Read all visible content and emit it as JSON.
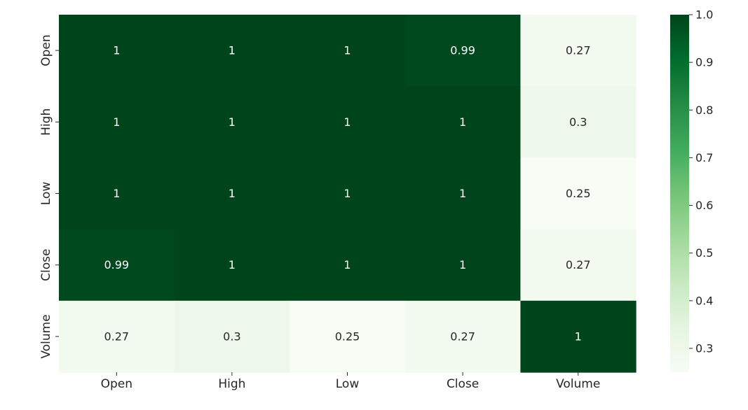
{
  "chart_data": {
    "type": "heatmap",
    "title": "",
    "xlabel": "",
    "ylabel": "",
    "x_labels": [
      "Open",
      "High",
      "Low",
      "Close",
      "Volume"
    ],
    "y_labels": [
      "Open",
      "High",
      "Low",
      "Close",
      "Volume"
    ],
    "values": [
      [
        1.0,
        1.0,
        1.0,
        0.99,
        0.27
      ],
      [
        1.0,
        1.0,
        1.0,
        1.0,
        0.3
      ],
      [
        1.0,
        1.0,
        1.0,
        1.0,
        0.25
      ],
      [
        0.99,
        1.0,
        1.0,
        1.0,
        0.27
      ],
      [
        0.27,
        0.3,
        0.25,
        0.27,
        1.0
      ]
    ],
    "annotations": [
      [
        "1",
        "1",
        "1",
        "0.99",
        "0.27"
      ],
      [
        "1",
        "1",
        "1",
        "1",
        "0.3"
      ],
      [
        "1",
        "1",
        "1",
        "1",
        "0.25"
      ],
      [
        "0.99",
        "1",
        "1",
        "1",
        "0.27"
      ],
      [
        "0.27",
        "0.3",
        "0.25",
        "0.27",
        "1"
      ]
    ],
    "colorbar": {
      "colormap": "Greens",
      "vmin": 0.25,
      "vmax": 1.0,
      "ticks": [
        1.0,
        0.9,
        0.8,
        0.7,
        0.6,
        0.5,
        0.4,
        0.3
      ],
      "tick_labels": [
        "1.0",
        "0.9",
        "0.8",
        "0.7",
        "0.6",
        "0.5",
        "0.4",
        "0.3"
      ]
    },
    "colors": {
      "low": "#f7fcf5",
      "high": "#00441b",
      "annotation_light": "#ffffff",
      "annotation_dark": "#262626",
      "axis_text": "#262626"
    }
  }
}
